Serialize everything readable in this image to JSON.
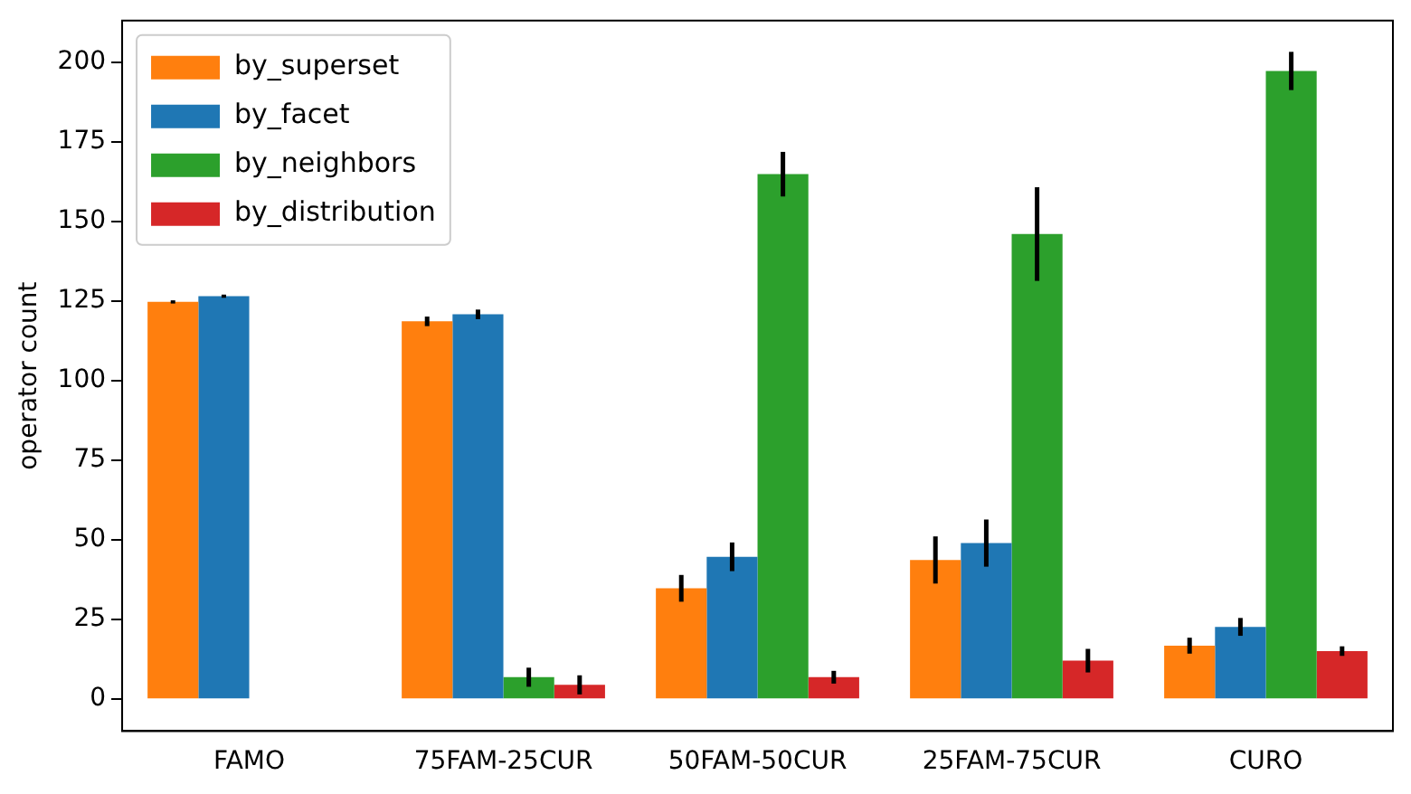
{
  "chart_data": {
    "type": "bar",
    "ylabel": "operator count",
    "categories": [
      "FAMO",
      "75FAM-25CUR",
      "50FAM-50CUR",
      "25FAM-75CUR",
      "CURO"
    ],
    "series": [
      {
        "name": "by_superset",
        "color": "#ff7f0e",
        "values": [
          124.7,
          118.6,
          34.8,
          43.7,
          16.8
        ],
        "errors": [
          0.5,
          1.5,
          4.2,
          7.4,
          2.5
        ]
      },
      {
        "name": "by_facet",
        "color": "#1f77b4",
        "values": [
          126.5,
          120.8,
          44.7,
          49,
          22.7
        ],
        "errors": [
          0.5,
          1.5,
          4.5,
          7.4,
          2.8
        ]
      },
      {
        "name": "by_neighbors",
        "color": "#2ca02c",
        "values": [
          0,
          6.9,
          164.8,
          146,
          197.2
        ],
        "errors": [
          null,
          3,
          7,
          14.7,
          6
        ]
      },
      {
        "name": "by_distribution",
        "color": "#d62728",
        "values": [
          null,
          4.5,
          6.9,
          12.1,
          15.1
        ],
        "errors": [
          null,
          3,
          2,
          3.7,
          1.5
        ]
      }
    ],
    "ylim": [
      -10,
      213
    ],
    "yticks": [
      0,
      25,
      50,
      75,
      100,
      125,
      150,
      175,
      200
    ],
    "grid": false,
    "legend": "top left"
  }
}
